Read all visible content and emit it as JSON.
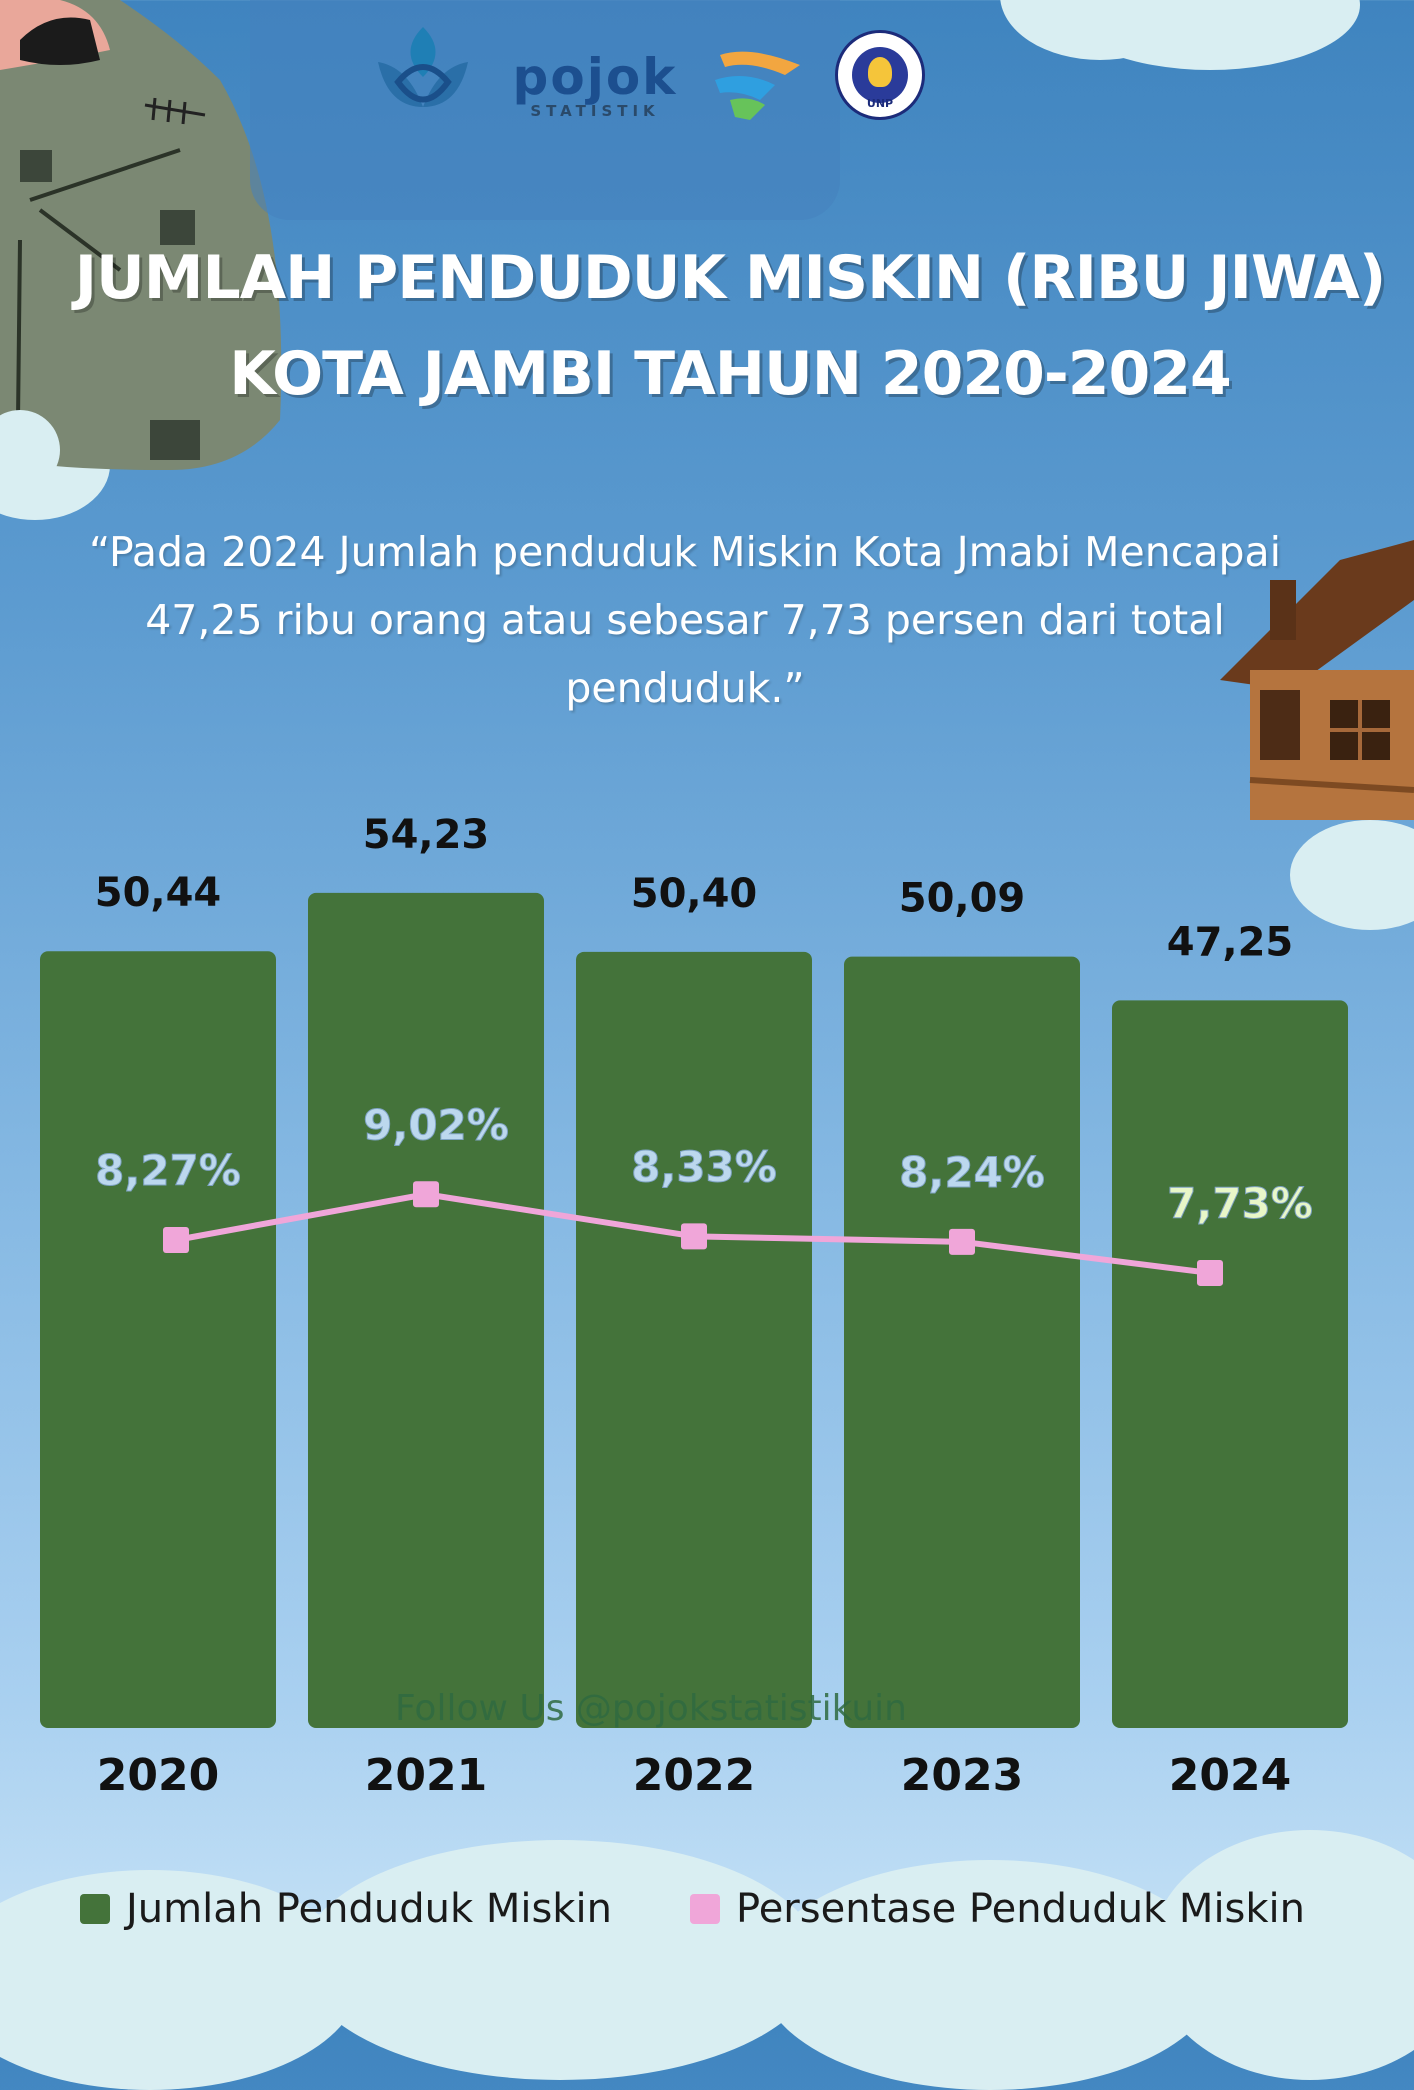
{
  "title": {
    "line1": "JUMLAH PENDUDUK MISKIN (RIBU JIWA)",
    "line2": "KOTA JAMBI TAHUN 2020-2024"
  },
  "quote": {
    "line1": "“Pada 2024 Jumlah penduduk Miskin Kota Jmabi Mencapai",
    "line2": "47,25 ribu orang atau sebesar 7,73 persen dari total",
    "line3": "penduduk.”"
  },
  "logos": {
    "pojok_main": "pojok",
    "pojok_sub": "STATISTIK",
    "unp_label": "UNP"
  },
  "footer": {
    "follow": "Follow Us @pojokstatistikuin"
  },
  "chart_data": {
    "type": "bar",
    "categories": [
      "2020",
      "2021",
      "2022",
      "2023",
      "2024"
    ],
    "series": [
      {
        "name": "Jumlah Penduduk Miskin",
        "values": [
          50.44,
          54.23,
          50.4,
          50.09,
          47.25
        ],
        "labels": [
          "50,44",
          "54,23",
          "50,40",
          "50,09",
          "47,25"
        ],
        "color": "#44733a"
      },
      {
        "name": "Persentase Penduduk Miskin",
        "type": "line",
        "values": [
          8.27,
          9.02,
          8.33,
          8.24,
          7.73
        ],
        "labels": [
          "8,27%",
          "9,02%",
          "8,33%",
          "8,24%",
          "7,73%"
        ],
        "color": "#f0a6d9"
      }
    ],
    "title": "JUMLAH PENDUDUK MISKIN (RIBU JIWA) KOTA JAMBI TAHUN 2020-2024",
    "legend": "bottom",
    "grid": false
  },
  "colors": {
    "bar": "#44733a",
    "line": "#f0a6d9",
    "percent_label": "#bcd8ee",
    "percent_label_last": "#e8f7c8"
  }
}
